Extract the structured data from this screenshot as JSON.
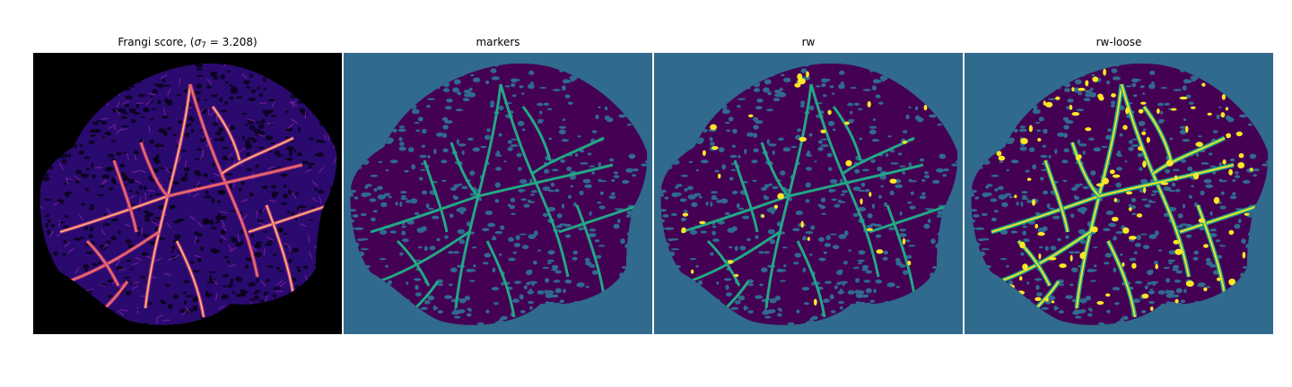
{
  "figure": {
    "panels": [
      {
        "id": "frangi",
        "title_prefix": "Frangi score, (",
        "title_symbol": "σ",
        "title_subscript": "7",
        "title_suffix": " = 3.208)",
        "colormap": "magma",
        "background": "#000000",
        "tissue_color": "#2a0a6e",
        "vessel_colors": [
          "#7a1fa0",
          "#c43a8a",
          "#f07a55",
          "#fbc06a"
        ]
      },
      {
        "id": "markers",
        "title": "markers",
        "background": "#306a8d",
        "tissue_color": "#440154",
        "vessel_color": "#22a884"
      },
      {
        "id": "rw",
        "title": "rw",
        "background": "#306a8d",
        "tissue_color": "#440154",
        "vessel_color": "#22a884",
        "highlight_color": "#fde725"
      },
      {
        "id": "rw-loose",
        "title": "rw-loose",
        "background": "#306a8d",
        "tissue_color": "#440154",
        "vessel_color": "#22a884",
        "highlight_color": "#fde725"
      }
    ]
  }
}
